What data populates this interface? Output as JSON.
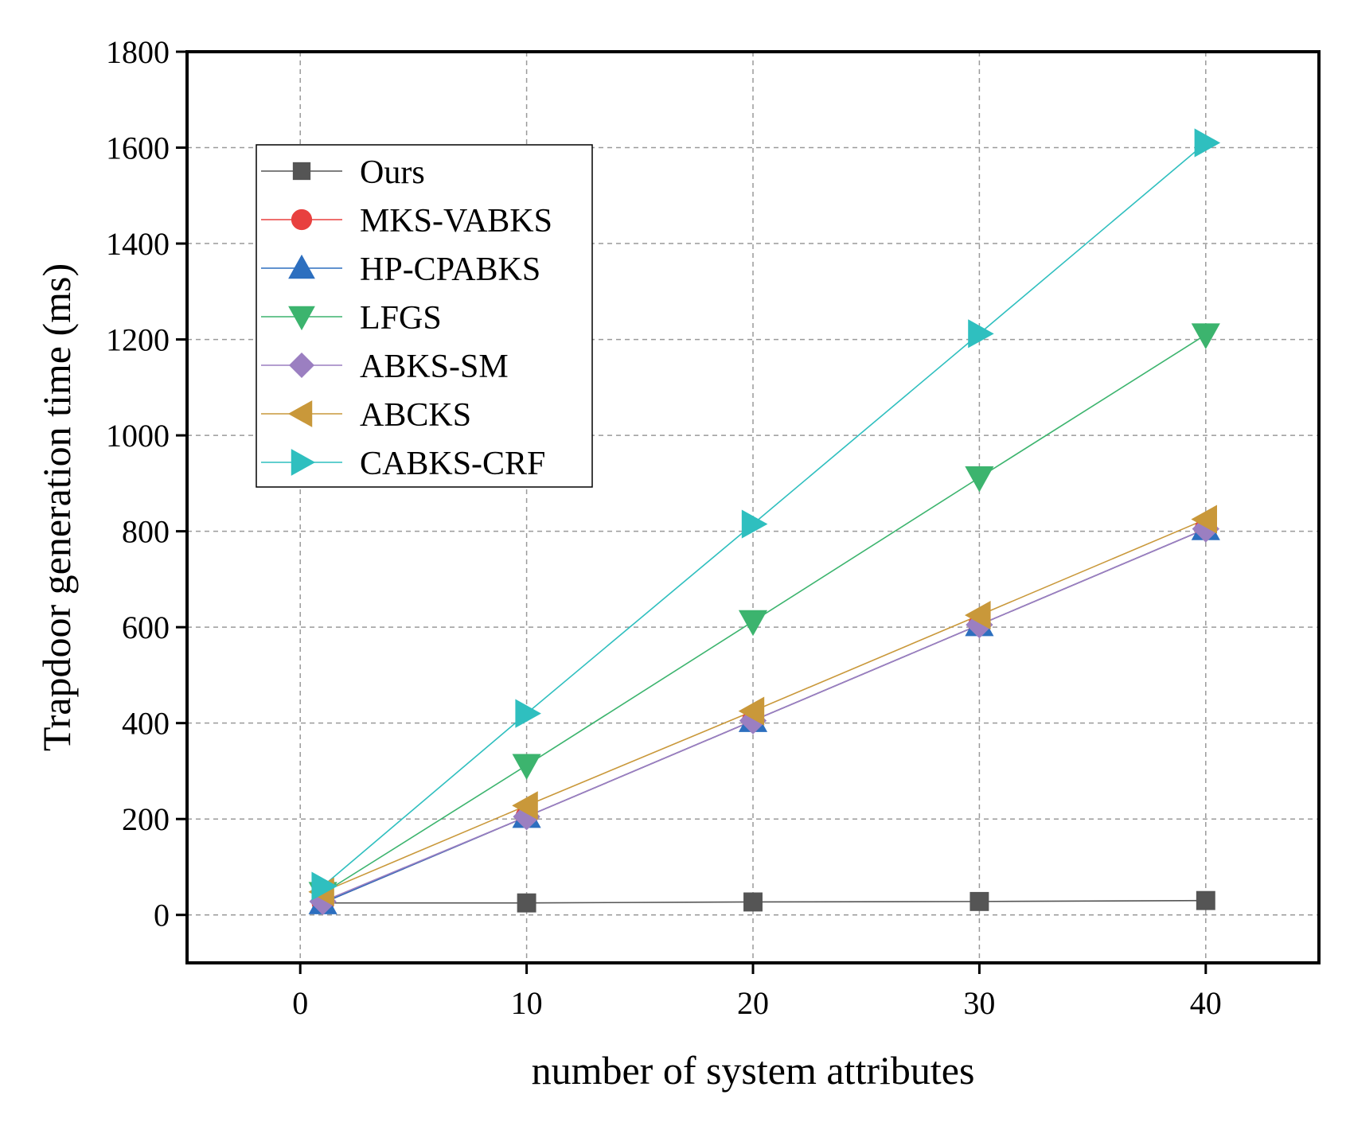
{
  "chart_data": {
    "type": "line",
    "title": "",
    "xlabel": "number of system attributes",
    "ylabel": "Trapdoor generation time (ms)",
    "xlim": [
      -5,
      45
    ],
    "ylim": [
      -100,
      1800
    ],
    "x_ticks": [
      0,
      10,
      20,
      30,
      40
    ],
    "y_ticks": [
      0,
      200,
      400,
      600,
      800,
      1000,
      1200,
      1400,
      1600,
      1800
    ],
    "grid": true,
    "legend_position": "top-left",
    "x": [
      1,
      10,
      20,
      30,
      40
    ],
    "series": [
      {
        "name": "Ours",
        "values": [
          25,
          25,
          27,
          28,
          30
        ],
        "color": "#555555",
        "marker": "square"
      },
      {
        "name": "MKS-VABKS",
        "values": [
          25,
          205,
          405,
          605,
          805
        ],
        "color": "#e8403f",
        "marker": "circle"
      },
      {
        "name": "HP-CPABKS",
        "values": [
          25,
          205,
          405,
          605,
          805
        ],
        "color": "#2d6fbf",
        "marker": "triangle-up"
      },
      {
        "name": " LFGS",
        "values": [
          45,
          312,
          612,
          912,
          1210
        ],
        "color": "#3cb46e",
        "marker": "triangle-down"
      },
      {
        "name": " ABKS-SM",
        "values": [
          28,
          205,
          405,
          605,
          805
        ],
        "color": "#9b7fc1",
        "marker": "diamond"
      },
      {
        "name": "ABCKS",
        "values": [
          48,
          228,
          425,
          625,
          825
        ],
        "color": "#c9983a",
        "marker": "triangle-left"
      },
      {
        "name": "CABKS-CRF",
        "values": [
          60,
          420,
          815,
          1212,
          1610
        ],
        "color": "#2fbfbf",
        "marker": "triangle-right"
      }
    ]
  }
}
